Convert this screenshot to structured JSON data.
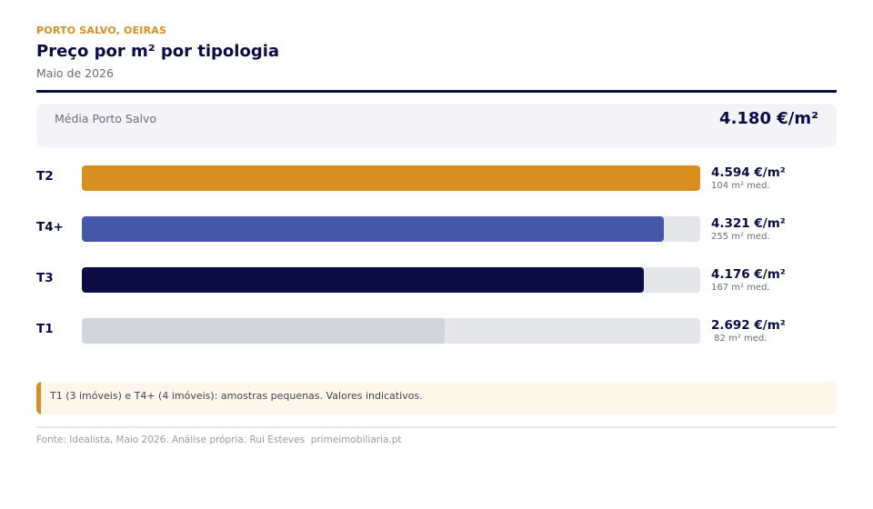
{
  "header": {
    "kicker": "PORTO SALVO, OEIRAS",
    "title": "Preço por m² por tipologia",
    "subtitle": "Maio de 2026"
  },
  "average": {
    "label": "Média Porto Salvo",
    "value": "4.180 €/m²"
  },
  "chart_data": {
    "type": "bar",
    "orientation": "horizontal",
    "title": "Preço por m² por tipologia",
    "categories": [
      "T2",
      "T4+",
      "T3",
      "T1"
    ],
    "values": [
      4594,
      4321,
      4176,
      2692
    ],
    "value_labels": [
      "4.594 €/m²",
      "4.321 €/m²",
      "4.176 €/m²",
      "2.692 €/m²"
    ],
    "sub_labels": [
      "104 m² med.",
      "255 m² med.",
      "167 m² med.",
      " 82 m² med."
    ],
    "colors": [
      "#d98e20",
      "#4457a8",
      "#0c0c45",
      "#d2d4db"
    ],
    "xlim": [
      0,
      4594
    ],
    "grid": false
  },
  "note": "T1 (3 imóveis) e T4+ (4 imóveis): amostras pequenas. Valores indicativos.",
  "source": "Fonte: Idealista, Maio 2026. Análise própria. Rui Esteves  primeimobiliaria.pt"
}
